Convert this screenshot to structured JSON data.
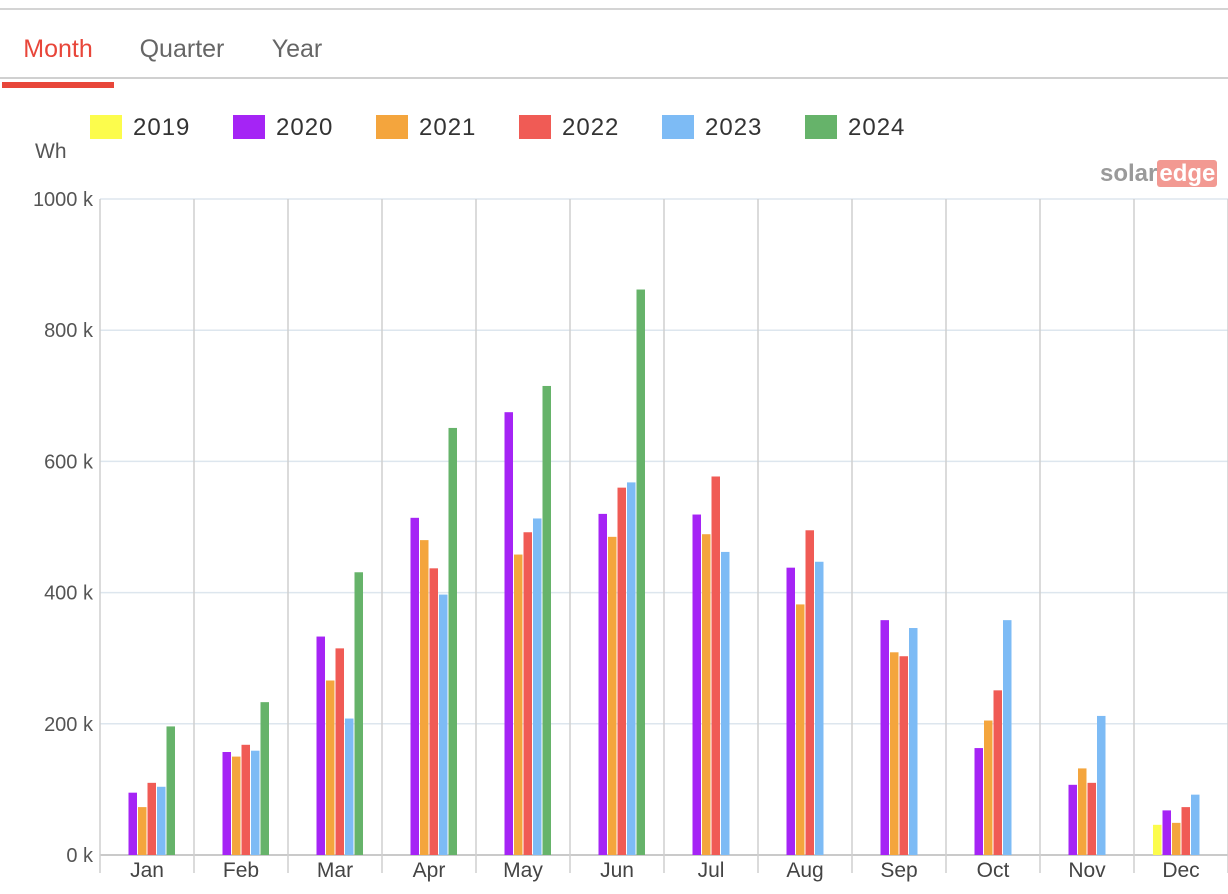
{
  "tabs": [
    {
      "label": "Month",
      "active": true
    },
    {
      "label": "Quarter",
      "active": false
    },
    {
      "label": "Year",
      "active": false
    }
  ],
  "unit_label": "Wh",
  "logo": {
    "part1": "solar",
    "part2": "edge"
  },
  "chart_data": {
    "type": "bar",
    "ylabel": "Wh",
    "ylim": [
      0,
      1000000
    ],
    "yticks": [
      0,
      200000,
      400000,
      600000,
      800000,
      1000000
    ],
    "ytick_labels": [
      "0 k",
      "200 k",
      "400 k",
      "600 k",
      "800 k",
      "1000 k"
    ],
    "grid": true,
    "legend_position": "top-left",
    "categories": [
      "Jan",
      "Feb",
      "Mar",
      "Apr",
      "May",
      "Jun",
      "Jul",
      "Aug",
      "Sep",
      "Oct",
      "Nov",
      "Dec"
    ],
    "series": [
      {
        "name": "2019",
        "color": "#fcfc4c",
        "values": [
          null,
          null,
          null,
          null,
          null,
          null,
          null,
          null,
          null,
          null,
          null,
          46000
        ]
      },
      {
        "name": "2020",
        "color": "#a524f5",
        "values": [
          95000,
          157000,
          333000,
          514000,
          675000,
          520000,
          519000,
          438000,
          358000,
          163000,
          107000,
          68000
        ]
      },
      {
        "name": "2021",
        "color": "#f4a53d",
        "values": [
          73000,
          150000,
          266000,
          480000,
          458000,
          485000,
          489000,
          382000,
          309000,
          205000,
          132000,
          49000
        ]
      },
      {
        "name": "2022",
        "color": "#f05b55",
        "values": [
          110000,
          168000,
          315000,
          437000,
          492000,
          560000,
          577000,
          495000,
          303000,
          251000,
          110000,
          73000
        ]
      },
      {
        "name": "2023",
        "color": "#7dbbf5",
        "values": [
          104000,
          159000,
          208000,
          397000,
          513000,
          568000,
          462000,
          447000,
          346000,
          358000,
          212000,
          92000
        ]
      },
      {
        "name": "2024",
        "color": "#66b36a",
        "values": [
          196000,
          233000,
          431000,
          651000,
          715000,
          862000,
          null,
          null,
          null,
          null,
          null,
          null
        ]
      }
    ]
  }
}
